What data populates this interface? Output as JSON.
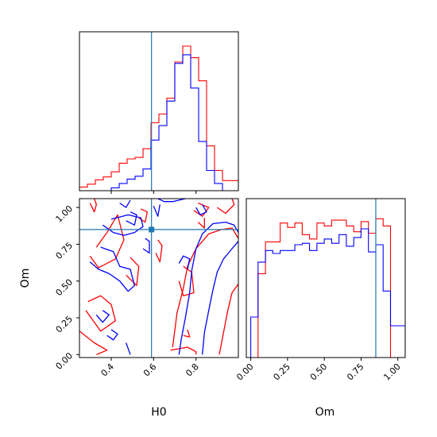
{
  "chart_data": [
    {
      "type": "histogram",
      "panel": "H0 marginal",
      "xlim": [
        0.25,
        1.0
      ],
      "bins": [
        0.25,
        0.2875,
        0.325,
        0.3625,
        0.4,
        0.4375,
        0.475,
        0.5125,
        0.55,
        0.5875,
        0.625,
        0.6625,
        0.7,
        0.7375,
        0.775,
        0.8125,
        0.85,
        0.8875,
        0.925,
        0.9625,
        1.0
      ],
      "truth": 0.59,
      "series": [
        {
          "color": "#ff0000",
          "counts": [
            0.025,
            0.045,
            0.075,
            0.095,
            0.13,
            0.19,
            0.22,
            0.23,
            0.29,
            0.47,
            0.53,
            0.64,
            0.89,
            1.0,
            0.92,
            0.76,
            0.31,
            0.14,
            0.07,
            0.07
          ]
        },
        {
          "color": "#0000ff",
          "counts": [
            0.0,
            0.0,
            0.0,
            0.0,
            0.02,
            0.05,
            0.08,
            0.1,
            0.15,
            0.35,
            0.45,
            0.62,
            0.88,
            0.94,
            0.71,
            0.34,
            0.14,
            0.05,
            0.0,
            0.0
          ]
        }
      ]
    },
    {
      "type": "contour",
      "panel": "H0 vs Om",
      "xlabel": "H0",
      "ylabel": "Om",
      "xlim": [
        0.25,
        1.0
      ],
      "ylim": [
        -0.02,
        1.06
      ],
      "xticks": [
        "0.4",
        "0.6",
        "0.8"
      ],
      "yticks": [
        "0.00",
        "0.25",
        "0.50",
        "0.75",
        "1.00"
      ],
      "truth": {
        "x": 0.59,
        "y": 0.85
      },
      "series": [
        {
          "color": "#ff0000",
          "contours": [
            [
              [
                0.3,
                1.03
              ],
              [
                0.32,
                0.97
              ],
              [
                0.33,
                1.02
              ],
              [
                0.32,
                1.06
              ]
            ],
            [
              [
                0.3,
                0.67
              ],
              [
                0.34,
                0.59
              ],
              [
                0.42,
                0.65
              ],
              [
                0.46,
                0.78
              ],
              [
                0.43,
                0.95
              ],
              [
                0.38,
                0.83
              ],
              [
                0.33,
                0.73
              ]
            ],
            [
              [
                0.28,
                0.3
              ],
              [
                0.35,
                0.16
              ],
              [
                0.42,
                0.23
              ],
              [
                0.4,
                0.34
              ],
              [
                0.35,
                0.4
              ],
              [
                0.29,
                0.36
              ]
            ],
            [
              [
                0.25,
                0.16
              ],
              [
                0.32,
                0.08
              ],
              [
                0.38,
                0.03
              ],
              [
                0.33,
                0.0
              ]
            ],
            [
              [
                0.47,
                0.54
              ],
              [
                0.52,
                0.47
              ],
              [
                0.53,
                0.6
              ],
              [
                0.49,
                0.66
              ]
            ],
            [
              [
                0.53,
                0.93
              ],
              [
                0.56,
                0.9
              ],
              [
                0.57,
                0.97
              ],
              [
                0.54,
                0.99
              ]
            ],
            [
              [
                0.61,
                0.69
              ],
              [
                0.63,
                0.63
              ],
              [
                0.64,
                0.74
              ],
              [
                0.62,
                0.78
              ]
            ],
            [
              [
                0.79,
                0.98
              ],
              [
                0.83,
                0.94
              ],
              [
                0.86,
                1.0
              ],
              [
                0.81,
                1.03
              ]
            ],
            [
              [
                0.9,
                1.0
              ],
              [
                0.94,
                0.96
              ],
              [
                0.98,
                1.02
              ],
              [
                0.97,
                1.06
              ]
            ],
            [
              [
                0.69,
                0.05
              ],
              [
                0.71,
                0.28
              ],
              [
                0.74,
                0.45
              ],
              [
                0.76,
                0.6
              ],
              [
                0.8,
                0.72
              ],
              [
                0.86,
                0.82
              ],
              [
                0.92,
                0.85
              ],
              [
                0.97,
                0.86
              ],
              [
                1.0,
                0.79
              ]
            ],
            [
              [
                0.91,
                0.0
              ],
              [
                0.93,
                0.15
              ],
              [
                0.95,
                0.3
              ],
              [
                0.97,
                0.42
              ],
              [
                1.0,
                0.48
              ]
            ],
            [
              [
                0.68,
                0.03
              ],
              [
                0.72,
                0.04
              ],
              [
                0.76,
                0.05
              ],
              [
                0.8,
                0.02
              ],
              [
                0.8,
                0.0
              ]
            ],
            [
              [
                0.72,
                0.5
              ],
              [
                0.74,
                0.4
              ],
              [
                0.79,
                0.42
              ],
              [
                0.78,
                0.56
              ],
              [
                0.74,
                0.6
              ]
            ],
            [
              [
                0.74,
                0.13
              ],
              [
                0.77,
                0.12
              ],
              [
                0.76,
                0.17
              ]
            ],
            [
              [
                0.81,
                0.9
              ],
              [
                0.84,
                0.86
              ],
              [
                0.84,
                0.93
              ]
            ]
          ]
        },
        {
          "color": "#0000ff",
          "contours": [
            [
              [
                0.44,
                1.03
              ],
              [
                0.47,
                1.0
              ],
              [
                0.49,
                1.05
              ]
            ],
            [
              [
                0.47,
                0.91
              ],
              [
                0.51,
                0.88
              ],
              [
                0.52,
                0.95
              ],
              [
                0.49,
                0.97
              ]
            ],
            [
              [
                0.36,
                0.88
              ],
              [
                0.41,
                0.83
              ],
              [
                0.46,
                0.81
              ],
              [
                0.51,
                0.83
              ],
              [
                0.55,
                0.87
              ],
              [
                0.54,
                0.93
              ],
              [
                0.48,
                0.95
              ],
              [
                0.4,
                0.92
              ]
            ],
            [
              [
                0.35,
                0.73
              ],
              [
                0.41,
                0.7
              ],
              [
                0.44,
                0.6
              ],
              [
                0.49,
                0.58
              ],
              [
                0.51,
                0.47
              ],
              [
                0.48,
                0.43
              ],
              [
                0.44,
                0.5
              ],
              [
                0.39,
                0.55
              ],
              [
                0.34,
                0.58
              ],
              [
                0.3,
                0.63
              ]
            ],
            [
              [
                0.33,
                0.27
              ],
              [
                0.36,
                0.22
              ],
              [
                0.39,
                0.27
              ],
              [
                0.36,
                0.3
              ]
            ],
            [
              [
                0.38,
                0.13
              ],
              [
                0.41,
                0.1
              ],
              [
                0.43,
                0.14
              ],
              [
                0.4,
                0.17
              ]
            ],
            [
              [
                0.55,
                0.72
              ],
              [
                0.58,
                0.69
              ],
              [
                0.58,
                0.77
              ],
              [
                0.56,
                0.79
              ]
            ],
            [
              [
                0.6,
                1.01
              ],
              [
                0.62,
                0.94
              ],
              [
                0.63,
                1.02
              ]
            ],
            [
              [
                0.62,
                1.06
              ],
              [
                0.65,
                1.04
              ],
              [
                0.69,
                1.04
              ],
              [
                0.72,
                1.05
              ],
              [
                0.75,
                1.06
              ]
            ],
            [
              [
                0.47,
                0.08
              ],
              [
                0.49,
                0.0
              ]
            ],
            [
              [
                0.72,
                0.0
              ],
              [
                0.73,
                0.1
              ],
              [
                0.75,
                0.25
              ],
              [
                0.77,
                0.42
              ],
              [
                0.78,
                0.57
              ],
              [
                0.8,
                0.72
              ],
              [
                0.83,
                0.82
              ],
              [
                0.88,
                0.89
              ],
              [
                0.94,
                0.9
              ],
              [
                0.98,
                0.88
              ],
              [
                1.0,
                0.83
              ]
            ],
            [
              [
                0.83,
                0.0
              ],
              [
                0.84,
                0.15
              ],
              [
                0.86,
                0.3
              ],
              [
                0.88,
                0.44
              ],
              [
                0.9,
                0.56
              ],
              [
                0.93,
                0.65
              ],
              [
                0.97,
                0.72
              ],
              [
                1.0,
                0.77
              ]
            ],
            [
              [
                0.72,
                0.62
              ],
              [
                0.74,
                0.67
              ],
              [
                0.77,
                0.65
              ],
              [
                0.76,
                0.58
              ]
            ],
            [
              [
                0.8,
                1.0
              ],
              [
                0.82,
                0.95
              ],
              [
                0.85,
                0.97
              ],
              [
                0.83,
                1.02
              ]
            ]
          ]
        }
      ]
    },
    {
      "type": "histogram",
      "panel": "Om marginal",
      "xlabel": "Om",
      "xlim": [
        -0.03,
        1.05
      ],
      "xticks": [
        "0.00",
        "0.25",
        "0.50",
        "0.75",
        "1.00"
      ],
      "bins": [
        0.0,
        0.05,
        0.1,
        0.15,
        0.2,
        0.25,
        0.3,
        0.35,
        0.4,
        0.45,
        0.5,
        0.55,
        0.6,
        0.65,
        0.7,
        0.75,
        0.8,
        0.85,
        0.9,
        0.95,
        1.0,
        1.05
      ],
      "truth": 0.85,
      "series": [
        {
          "color": "#ff0000",
          "counts": [
            0.0,
            0.58,
            0.8,
            0.8,
            0.93,
            0.9,
            0.93,
            0.85,
            0.82,
            0.93,
            0.91,
            0.95,
            0.95,
            0.91,
            0.87,
            0.94,
            0.86,
            0.96,
            0.91,
            0.0,
            0.0
          ]
        },
        {
          "color": "#0000ff",
          "counts": [
            0.28,
            0.66,
            0.74,
            0.72,
            0.74,
            0.74,
            0.78,
            0.79,
            0.74,
            0.79,
            0.82,
            0.79,
            0.85,
            0.77,
            0.83,
            0.89,
            0.73,
            0.78,
            0.46,
            0.22,
            0.22
          ]
        }
      ]
    }
  ]
}
